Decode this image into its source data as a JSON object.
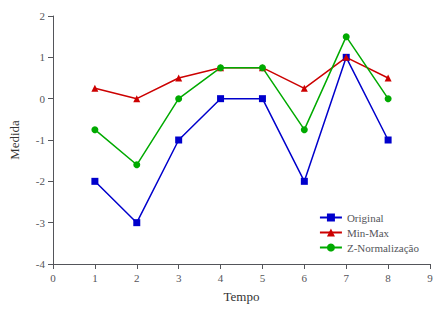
{
  "chart_data": {
    "type": "line",
    "x": [
      1,
      2,
      3,
      4,
      5,
      6,
      7,
      8
    ],
    "series": [
      {
        "name": "Original",
        "color": "#0000cc",
        "marker": "square",
        "values": [
          -2,
          -3,
          -1,
          0,
          0,
          -2,
          1,
          -1
        ]
      },
      {
        "name": "Min-Max",
        "color": "#cc0000",
        "marker": "triangle",
        "values": [
          0.25,
          0.0,
          0.5,
          0.75,
          0.75,
          0.25,
          1.0,
          0.5
        ]
      },
      {
        "name": "Z-Normalização",
        "color": "#00aa00",
        "marker": "circle",
        "values": [
          -0.75,
          -1.6,
          0.0,
          0.75,
          0.75,
          -0.75,
          1.5,
          0.0
        ]
      }
    ],
    "xlabel": "Tempo",
    "ylabel": "Medida",
    "xlim": [
      0,
      9
    ],
    "ylim": [
      -4,
      2
    ],
    "xticks": [
      0,
      1,
      2,
      3,
      4,
      5,
      6,
      7,
      8,
      9
    ],
    "yticks": [
      -4,
      -3,
      -2,
      -1,
      0,
      1,
      2
    ],
    "grid": false,
    "legend": "lower right"
  }
}
